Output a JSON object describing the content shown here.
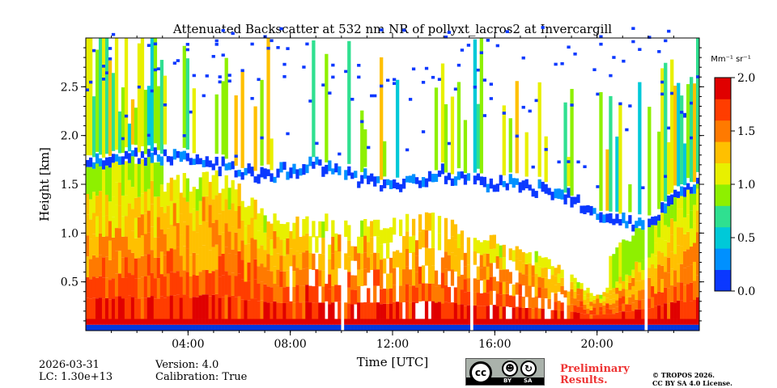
{
  "chart_data": {
    "type": "heatmap",
    "title": "Attenuated Backscatter at 532 nm NR of pollyxt_lacros2 at Invercargill",
    "xlabel": "Time [UTC]",
    "ylabel": "Height [km]",
    "xlim": [
      0,
      24
    ],
    "ylim": [
      0,
      3.0
    ],
    "x_ticks": [
      {
        "value": 4,
        "label": "04:00"
      },
      {
        "value": 8,
        "label": "08:00"
      },
      {
        "value": 12,
        "label": "12:00"
      },
      {
        "value": 16,
        "label": "16:00"
      },
      {
        "value": 20,
        "label": "20:00"
      }
    ],
    "y_ticks": [
      {
        "value": 0.5,
        "label": "0.5"
      },
      {
        "value": 1.0,
        "label": "1.0"
      },
      {
        "value": 1.5,
        "label": "1.5"
      },
      {
        "value": 2.0,
        "label": "2.0"
      },
      {
        "value": 2.5,
        "label": "2.5"
      }
    ],
    "colorbar": {
      "label": "Mm⁻¹ sr⁻¹",
      "range": [
        0.0,
        2.0
      ],
      "ticks": [
        "0.0",
        "0.5",
        "1.0",
        "1.5",
        "2.0"
      ],
      "colormap": [
        "#0b38ff",
        "#0090ff",
        "#00c9d8",
        "#2fe090",
        "#8ef000",
        "#e8f000",
        "#ffc000",
        "#ff7a00",
        "#ff3d00",
        "#e00000"
      ]
    },
    "boundary_layer_top_km": [
      [
        0,
        1.4
      ],
      [
        2,
        1.5
      ],
      [
        4,
        1.55
      ],
      [
        5,
        1.6
      ],
      [
        6,
        1.45
      ],
      [
        7,
        1.2
      ],
      [
        8,
        1.15
      ],
      [
        9,
        1.2
      ],
      [
        10,
        1.1
      ],
      [
        11,
        1.1
      ],
      [
        12,
        1.15
      ],
      [
        13,
        1.2
      ],
      [
        14,
        1.15
      ],
      [
        15,
        1.0
      ],
      [
        16,
        0.95
      ],
      [
        17,
        0.9
      ],
      [
        18,
        0.75
      ],
      [
        19,
        0.55
      ],
      [
        20,
        0.35
      ],
      [
        21,
        0.55
      ],
      [
        22,
        0.8
      ],
      [
        23,
        1.2
      ],
      [
        24,
        1.4
      ]
    ],
    "cloud_base_km": [
      [
        0,
        1.7
      ],
      [
        3,
        1.75
      ],
      [
        5,
        1.65
      ],
      [
        6,
        1.6
      ],
      [
        7,
        1.55
      ],
      [
        8,
        1.6
      ],
      [
        9,
        1.65
      ],
      [
        10,
        1.55
      ],
      [
        11,
        1.5
      ],
      [
        12,
        1.45
      ],
      [
        13,
        1.5
      ],
      [
        14,
        1.55
      ],
      [
        15,
        1.5
      ],
      [
        16,
        1.45
      ],
      [
        17,
        1.45
      ],
      [
        18,
        1.4
      ],
      [
        19,
        1.3
      ],
      [
        20,
        1.15
      ],
      [
        21,
        1.05
      ],
      [
        22,
        1.0
      ],
      [
        23,
        1.3
      ],
      [
        24,
        1.5
      ]
    ],
    "data_gaps_hours": [
      10.05,
      15.05,
      21.95
    ]
  },
  "footer": {
    "date": "2026-03-31",
    "lc": "LC: 1.30e+13",
    "version": "Version: 4.0",
    "calibration": "Calibration: True",
    "preliminary_line1": "Preliminary",
    "preliminary_line2": "Results.",
    "copyright_line1": "© TROPOS 2026.",
    "copyright_line2": "CC BY SA 4.0 License.",
    "license_badge": {
      "cc": "cc",
      "by": "BY",
      "sa": "SA"
    },
    "preliminary_color": "#ee3333"
  }
}
